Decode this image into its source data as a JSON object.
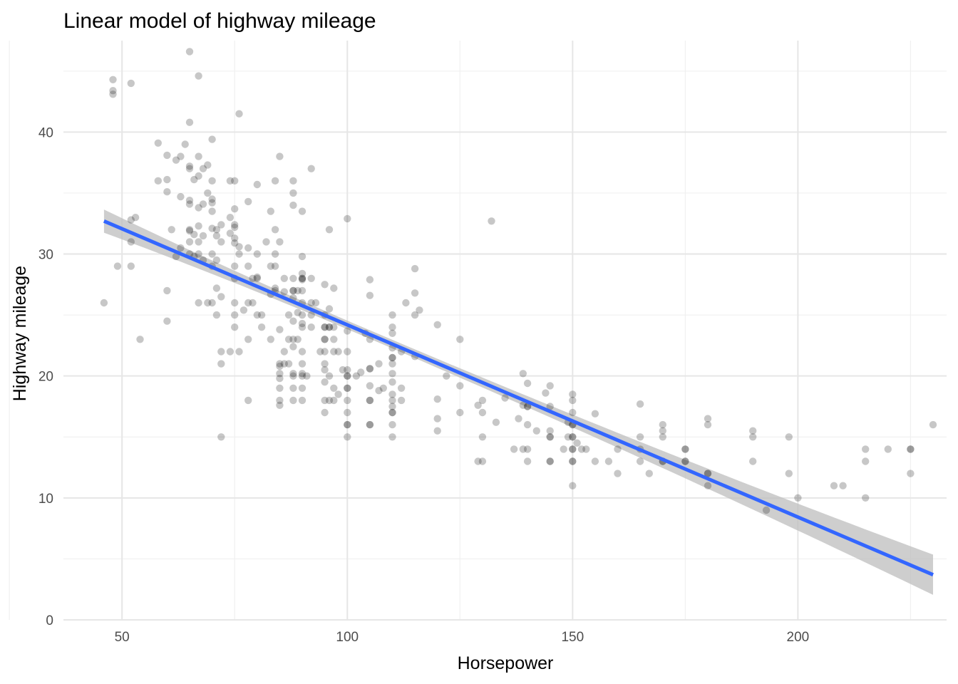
{
  "chart_data": {
    "type": "scatter",
    "title": "Linear model of highway mileage",
    "xlabel": "Horsepower",
    "ylabel": "Highway mileage",
    "xlim": [
      37,
      233
    ],
    "ylim": [
      0,
      47.5
    ],
    "x_ticks": [
      50,
      100,
      150,
      200
    ],
    "y_ticks": [
      0,
      10,
      20,
      30,
      40
    ],
    "x_tick_labels": [
      "50",
      "100",
      "150",
      "200"
    ],
    "y_tick_labels": [
      "0",
      "10",
      "20",
      "30",
      "40"
    ],
    "grid": true,
    "legend": "none",
    "colors": {
      "points": "#000000",
      "point_alpha": 0.22,
      "fit_line": "#3366ff",
      "confidence_band": "#bebebe"
    },
    "fit": {
      "method": "lm",
      "x_range": [
        46,
        230
      ],
      "y_at_start": 32.7,
      "y_at_end": 3.7,
      "ci_half_width_start": 0.95,
      "ci_half_width_mid": 0.35,
      "ci_half_width_end": 1.65,
      "x_mid": 104
    },
    "points": [
      [
        46,
        26
      ],
      [
        48,
        44.3
      ],
      [
        48,
        43.4
      ],
      [
        48,
        43.1
      ],
      [
        49,
        29
      ],
      [
        52,
        44
      ],
      [
        52,
        32.8
      ],
      [
        52,
        31
      ],
      [
        52,
        29
      ],
      [
        53,
        33
      ],
      [
        54,
        23
      ],
      [
        58,
        36
      ],
      [
        58,
        39.1
      ],
      [
        60,
        38.1
      ],
      [
        60,
        36.1
      ],
      [
        60,
        35.1
      ],
      [
        60,
        27
      ],
      [
        60,
        24.5
      ],
      [
        61,
        32
      ],
      [
        62,
        37.7
      ],
      [
        62,
        29.8
      ],
      [
        63,
        38
      ],
      [
        63,
        34.7
      ],
      [
        63,
        30.5
      ],
      [
        64,
        39
      ],
      [
        65,
        46.6
      ],
      [
        65,
        40.8
      ],
      [
        65,
        37.2
      ],
      [
        65,
        37
      ],
      [
        65,
        34.4
      ],
      [
        65,
        34.1
      ],
      [
        65,
        32
      ],
      [
        65,
        31.9
      ],
      [
        65,
        31
      ],
      [
        65,
        30
      ],
      [
        66,
        36.1
      ],
      [
        66,
        31.6
      ],
      [
        66,
        29.8
      ],
      [
        67,
        44.6
      ],
      [
        67,
        38
      ],
      [
        67,
        36.4
      ],
      [
        67,
        33.8
      ],
      [
        67,
        32.3
      ],
      [
        67,
        31
      ],
      [
        67,
        30
      ],
      [
        67,
        26
      ],
      [
        68,
        37
      ],
      [
        68,
        34.1
      ],
      [
        68,
        31.5
      ],
      [
        68,
        29.5
      ],
      [
        69,
        37.3
      ],
      [
        69,
        35
      ],
      [
        69,
        26
      ],
      [
        70,
        39.4
      ],
      [
        70,
        36
      ],
      [
        70,
        34.5
      ],
      [
        70,
        34.2
      ],
      [
        70,
        33.5
      ],
      [
        70,
        32.1
      ],
      [
        70,
        30
      ],
      [
        70,
        29
      ],
      [
        70,
        26
      ],
      [
        71,
        32
      ],
      [
        71,
        31.5
      ],
      [
        71,
        29.5
      ],
      [
        71,
        27.2
      ],
      [
        71,
        25
      ],
      [
        72,
        32.4
      ],
      [
        72,
        31
      ],
      [
        72,
        26.5
      ],
      [
        72,
        22
      ],
      [
        72,
        21
      ],
      [
        72,
        15
      ],
      [
        74,
        36
      ],
      [
        74,
        33
      ],
      [
        74,
        31.7
      ],
      [
        74,
        22
      ],
      [
        75,
        36
      ],
      [
        75,
        33.7
      ],
      [
        75,
        32.4
      ],
      [
        75,
        32.2
      ],
      [
        75,
        31.3
      ],
      [
        75,
        30.9
      ],
      [
        75,
        29
      ],
      [
        75,
        28
      ],
      [
        75,
        26
      ],
      [
        75,
        25
      ],
      [
        75,
        24
      ],
      [
        76,
        41.5
      ],
      [
        76,
        30.6
      ],
      [
        76,
        30
      ],
      [
        76,
        22
      ],
      [
        77,
        25.4
      ],
      [
        78,
        34.3
      ],
      [
        78,
        30.5
      ],
      [
        78,
        29
      ],
      [
        78,
        26
      ],
      [
        78,
        23
      ],
      [
        78,
        18
      ],
      [
        79,
        28
      ],
      [
        79,
        26
      ],
      [
        80,
        35.7
      ],
      [
        80,
        30
      ],
      [
        80,
        28.1
      ],
      [
        80,
        28
      ],
      [
        80,
        25
      ],
      [
        81,
        25
      ],
      [
        81,
        24
      ],
      [
        82,
        31
      ],
      [
        83,
        33.5
      ],
      [
        83,
        29
      ],
      [
        83,
        23
      ],
      [
        83,
        26.7
      ],
      [
        84,
        36
      ],
      [
        84,
        32
      ],
      [
        84,
        30
      ],
      [
        84,
        29
      ],
      [
        84,
        27.2
      ],
      [
        84,
        27
      ],
      [
        85,
        38
      ],
      [
        85,
        31
      ],
      [
        85,
        23.8
      ],
      [
        85,
        21
      ],
      [
        85,
        20.8
      ],
      [
        85,
        20.2
      ],
      [
        85,
        19.8
      ],
      [
        85,
        19
      ],
      [
        85,
        18
      ],
      [
        85,
        17.6
      ],
      [
        86,
        28
      ],
      [
        86,
        26.9
      ],
      [
        86,
        22
      ],
      [
        86,
        21
      ],
      [
        87,
        25
      ],
      [
        87,
        23
      ],
      [
        87,
        21
      ],
      [
        88,
        36
      ],
      [
        88,
        35
      ],
      [
        88,
        34
      ],
      [
        88,
        28
      ],
      [
        88,
        27
      ],
      [
        88,
        27
      ],
      [
        88,
        26.4
      ],
      [
        88,
        24.5
      ],
      [
        88,
        23
      ],
      [
        88,
        22.4
      ],
      [
        88,
        20.2
      ],
      [
        88,
        20
      ],
      [
        88,
        19
      ],
      [
        88,
        18
      ],
      [
        89,
        27
      ],
      [
        89,
        25.2
      ],
      [
        89,
        23
      ],
      [
        90,
        33.5
      ],
      [
        90,
        29.8
      ],
      [
        90,
        28.4
      ],
      [
        90,
        28
      ],
      [
        90,
        28
      ],
      [
        90,
        27.9
      ],
      [
        90,
        27
      ],
      [
        90,
        26
      ],
      [
        90,
        25
      ],
      [
        90,
        24.3
      ],
      [
        90,
        24
      ],
      [
        90,
        22
      ],
      [
        90,
        21
      ],
      [
        90,
        20.2
      ],
      [
        90,
        20
      ],
      [
        90,
        19
      ],
      [
        90,
        18
      ],
      [
        91,
        20
      ],
      [
        92,
        37
      ],
      [
        92,
        28
      ],
      [
        92,
        26
      ],
      [
        92,
        25
      ],
      [
        92,
        24
      ],
      [
        93,
        26
      ],
      [
        94,
        22
      ],
      [
        95,
        27.5
      ],
      [
        95,
        25
      ],
      [
        95,
        24
      ],
      [
        95,
        24
      ],
      [
        95,
        23
      ],
      [
        95,
        23
      ],
      [
        95,
        22
      ],
      [
        95,
        21
      ],
      [
        95,
        20.5
      ],
      [
        95,
        19.5
      ],
      [
        95,
        18
      ],
      [
        95,
        17
      ],
      [
        96,
        32
      ],
      [
        96,
        25.5
      ],
      [
        96,
        24
      ],
      [
        96,
        24
      ],
      [
        96,
        20
      ],
      [
        96,
        18
      ],
      [
        97,
        27.2
      ],
      [
        97,
        24
      ],
      [
        97,
        23
      ],
      [
        97,
        22
      ],
      [
        97,
        19
      ],
      [
        97,
        18
      ],
      [
        98,
        22
      ],
      [
        98,
        18.5
      ],
      [
        99,
        20.5
      ],
      [
        100,
        32.9
      ],
      [
        100,
        23.7
      ],
      [
        100,
        22
      ],
      [
        100,
        20.5
      ],
      [
        100,
        20
      ],
      [
        100,
        20
      ],
      [
        100,
        19
      ],
      [
        100,
        19
      ],
      [
        100,
        18
      ],
      [
        100,
        17
      ],
      [
        100,
        16
      ],
      [
        100,
        16
      ],
      [
        100,
        15
      ],
      [
        102,
        20
      ],
      [
        103,
        20.3
      ],
      [
        104,
        23.5
      ],
      [
        105,
        27.9
      ],
      [
        105,
        26.6
      ],
      [
        105,
        23
      ],
      [
        105,
        20.6
      ],
      [
        105,
        20.6
      ],
      [
        105,
        19.2
      ],
      [
        105,
        18
      ],
      [
        105,
        18
      ],
      [
        105,
        16
      ],
      [
        105,
        16
      ],
      [
        107,
        21
      ],
      [
        107,
        18.8
      ],
      [
        108,
        19
      ],
      [
        110,
        25
      ],
      [
        110,
        24
      ],
      [
        110,
        23.5
      ],
      [
        110,
        22.3
      ],
      [
        110,
        21.5
      ],
      [
        110,
        21.5
      ],
      [
        110,
        21
      ],
      [
        110,
        20.2
      ],
      [
        110,
        19.5
      ],
      [
        110,
        18.5
      ],
      [
        110,
        18
      ],
      [
        110,
        17.5
      ],
      [
        110,
        17
      ],
      [
        110,
        17
      ],
      [
        110,
        16
      ],
      [
        110,
        15
      ],
      [
        112,
        22
      ],
      [
        112,
        19
      ],
      [
        112,
        18
      ],
      [
        113,
        26
      ],
      [
        115,
        28.8
      ],
      [
        115,
        26.8
      ],
      [
        115,
        25
      ],
      [
        115,
        21.6
      ],
      [
        116,
        25.4
      ],
      [
        120,
        24.2
      ],
      [
        120,
        18.1
      ],
      [
        120,
        16.5
      ],
      [
        120,
        15.5
      ],
      [
        122,
        20
      ],
      [
        125,
        23
      ],
      [
        125,
        19.2
      ],
      [
        125,
        17
      ],
      [
        129,
        17.6
      ],
      [
        129,
        13
      ],
      [
        130,
        18
      ],
      [
        130,
        17
      ],
      [
        130,
        15
      ],
      [
        130,
        13
      ],
      [
        132,
        32.7
      ],
      [
        133,
        16.2
      ],
      [
        135,
        18.2
      ],
      [
        137,
        14
      ],
      [
        138,
        16.5
      ],
      [
        139,
        20.2
      ],
      [
        139,
        17.6
      ],
      [
        139,
        14
      ],
      [
        140,
        19.4
      ],
      [
        140,
        17.5
      ],
      [
        140,
        17.5
      ],
      [
        140,
        16
      ],
      [
        140,
        14
      ],
      [
        140,
        13
      ],
      [
        142,
        15.5
      ],
      [
        144,
        18.6
      ],
      [
        145,
        19.2
      ],
      [
        145,
        17.5
      ],
      [
        145,
        15.5
      ],
      [
        145,
        15
      ],
      [
        145,
        15
      ],
      [
        145,
        13
      ],
      [
        145,
        13
      ],
      [
        148,
        14
      ],
      [
        149,
        16.2
      ],
      [
        149,
        15
      ],
      [
        150,
        18.5
      ],
      [
        150,
        18
      ],
      [
        150,
        17
      ],
      [
        150,
        16
      ],
      [
        150,
        16
      ],
      [
        150,
        15
      ],
      [
        150,
        15
      ],
      [
        150,
        14
      ],
      [
        150,
        14
      ],
      [
        150,
        13
      ],
      [
        150,
        13
      ],
      [
        150,
        11
      ],
      [
        151,
        14.5
      ],
      [
        152,
        14
      ],
      [
        153,
        14
      ],
      [
        155,
        16.9
      ],
      [
        155,
        13
      ],
      [
        158,
        13
      ],
      [
        160,
        14
      ],
      [
        160,
        12
      ],
      [
        165,
        17.7
      ],
      [
        165,
        15
      ],
      [
        165,
        14
      ],
      [
        165,
        13
      ],
      [
        167,
        12
      ],
      [
        170,
        16
      ],
      [
        170,
        15.5
      ],
      [
        170,
        15
      ],
      [
        170,
        13
      ],
      [
        170,
        13
      ],
      [
        175,
        14
      ],
      [
        175,
        14
      ],
      [
        175,
        13
      ],
      [
        175,
        13
      ],
      [
        180,
        16.5
      ],
      [
        180,
        16
      ],
      [
        180,
        12
      ],
      [
        180,
        12
      ],
      [
        180,
        11
      ],
      [
        190,
        15.5
      ],
      [
        190,
        15
      ],
      [
        190,
        13
      ],
      [
        193,
        9
      ],
      [
        198,
        15
      ],
      [
        198,
        12
      ],
      [
        200,
        10
      ],
      [
        208,
        11
      ],
      [
        210,
        11
      ],
      [
        215,
        14
      ],
      [
        215,
        13
      ],
      [
        215,
        10
      ],
      [
        220,
        14
      ],
      [
        225,
        14
      ],
      [
        225,
        14
      ],
      [
        225,
        12
      ],
      [
        230,
        16
      ]
    ]
  }
}
